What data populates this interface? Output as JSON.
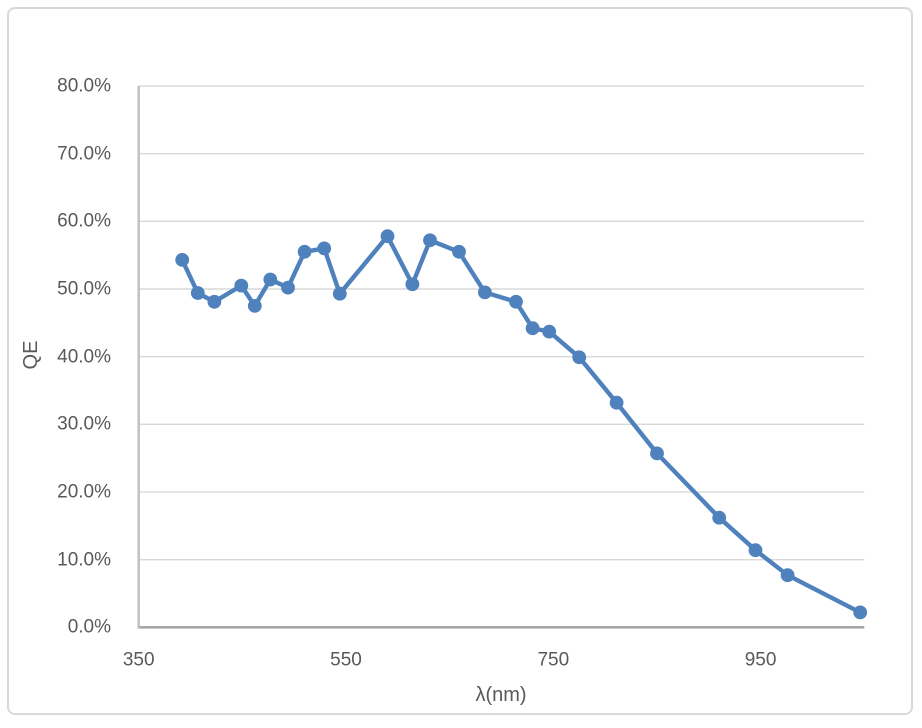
{
  "chart_data": {
    "type": "line",
    "title": "",
    "xlabel": "λ(nm)",
    "ylabel": "QE",
    "grid": true,
    "legend": false,
    "xlim": [
      350,
      1050
    ],
    "ylim_percent": [
      0,
      80
    ],
    "x_ticks": [
      {
        "value": 350,
        "label": "350"
      },
      {
        "value": 550,
        "label": "550"
      },
      {
        "value": 750,
        "label": "750"
      },
      {
        "value": 950,
        "label": "950"
      }
    ],
    "y_ticks": [
      {
        "value": 0,
        "label": "0.0%"
      },
      {
        "value": 10,
        "label": "10.0%"
      },
      {
        "value": 20,
        "label": "20.0%"
      },
      {
        "value": 30,
        "label": "30.0%"
      },
      {
        "value": 40,
        "label": "40.0%"
      },
      {
        "value": 50,
        "label": "50.0%"
      },
      {
        "value": 60,
        "label": "60.0%"
      },
      {
        "value": 70,
        "label": "70.0%"
      },
      {
        "value": 80,
        "label": "80.0%"
      }
    ],
    "series": [
      {
        "name": "QE",
        "marker": "circle",
        "color": "#4f81bd",
        "x": [
          392,
          407,
          423,
          449,
          462,
          477,
          494,
          510,
          529,
          544,
          590,
          614,
          631,
          659,
          684,
          714,
          730,
          746,
          775,
          811,
          850,
          910,
          945,
          976,
          1046
        ],
        "y_percent": [
          54.3,
          49.4,
          48.1,
          50.5,
          47.5,
          51.4,
          50.2,
          55.5,
          56.0,
          49.3,
          57.8,
          50.7,
          57.2,
          55.5,
          49.5,
          48.1,
          44.2,
          43.7,
          39.9,
          33.2,
          25.7,
          16.2,
          11.4,
          7.7,
          2.2
        ]
      }
    ]
  },
  "colors": {
    "series": "#4f81bd",
    "gridline": "#d9d9d9",
    "x_axis_line": "#a6a6a6",
    "y_axis_line": "#bfbfbf",
    "tick_text": "#595959",
    "chart_border": "#d9d9d9",
    "background": "#ffffff"
  }
}
